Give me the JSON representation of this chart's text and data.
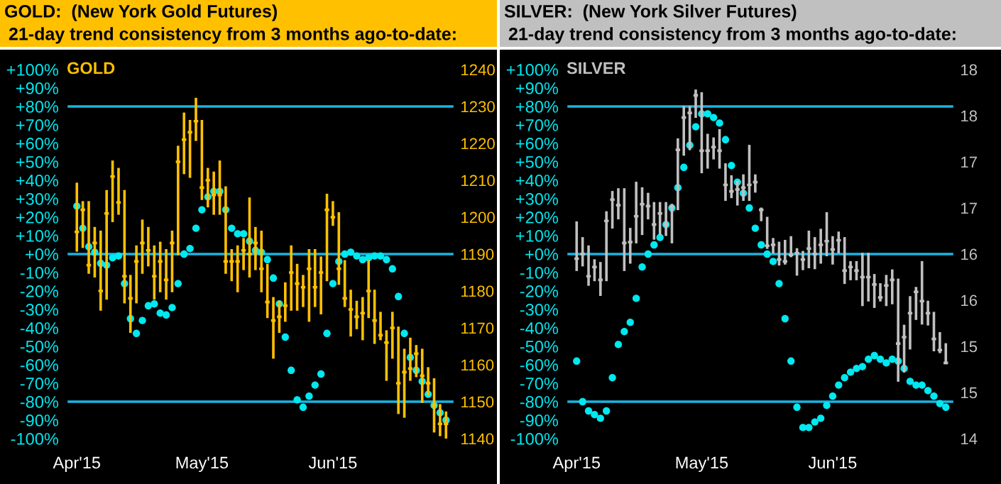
{
  "chart_data": [
    {
      "type": "candlestick",
      "title": "GOLD:  (New York Gold Futures)",
      "subtitle": "21-day trend consistency from 3 months ago-to-date:",
      "categories": [
        "Apr'15",
        null,
        null,
        null,
        null,
        null,
        null,
        null,
        null,
        null,
        null,
        null,
        null,
        null,
        null,
        null,
        null,
        null,
        null,
        null,
        null,
        "May'15",
        null,
        null,
        null,
        null,
        null,
        null,
        null,
        null,
        null,
        null,
        null,
        null,
        null,
        null,
        null,
        null,
        null,
        null,
        null,
        null,
        null,
        "Jun'15",
        null,
        null,
        null,
        null,
        null,
        null,
        null,
        null,
        null,
        null,
        null,
        null,
        null,
        null,
        null,
        null,
        null,
        null,
        null
      ],
      "series": [
        {
          "type": "candlestick",
          "axis": "y2",
          "color": "#ffc000",
          "ohlc": [
            [
              1196,
              1209,
              1191,
              1196
            ],
            [
              1202,
              1204,
              1192,
              1202
            ],
            [
              1187,
              1204,
              1185,
              1187
            ],
            [
              1193,
              1197,
              1184,
              1193
            ],
            [
              1180,
              1196,
              1175,
              1180
            ],
            [
              1201,
              1207,
              1178,
              1201
            ],
            [
              1211,
              1215,
              1199,
              1211
            ],
            [
              1204,
              1213,
              1201,
              1204
            ],
            [
              1184,
              1207,
              1177,
              1184
            ],
            [
              1178,
              1184,
              1169,
              1178
            ],
            [
              1188,
              1192,
              1177,
              1188
            ],
            [
              1193,
              1199,
              1185,
              1193
            ],
            [
              1191,
              1197,
              1187,
              1191
            ],
            [
              1184,
              1192,
              1178,
              1184
            ],
            [
              1188,
              1193,
              1180,
              1188
            ],
            [
              1183,
              1191,
              1178,
              1183
            ],
            [
              1193,
              1196,
              1180,
              1193
            ],
            [
              1215,
              1219,
              1190,
              1215
            ],
            [
              1221,
              1228,
              1212,
              1221
            ],
            [
              1223,
              1226,
              1211,
              1223
            ],
            [
              1226,
              1232,
              1221,
              1226
            ],
            [
              1208,
              1226,
              1205,
              1208
            ],
            [
              1210,
              1213,
              1203,
              1210
            ],
            [
              1206,
              1212,
              1201,
              1206
            ],
            [
              1206,
              1215,
              1201,
              1206
            ],
            [
              1188,
              1208,
              1185,
              1188
            ],
            [
              1188,
              1191,
              1183,
              1188
            ],
            [
              1188,
              1192,
              1180,
              1188
            ],
            [
              1191,
              1194,
              1186,
              1191
            ],
            [
              1190,
              1205,
              1184,
              1190
            ],
            [
              1193,
              1197,
              1186,
              1193
            ],
            [
              1186,
              1196,
              1180,
              1186
            ],
            [
              1177,
              1187,
              1173,
              1177
            ],
            [
              1172,
              1178,
              1162,
              1172
            ],
            [
              1173,
              1177,
              1169,
              1173
            ],
            [
              1176,
              1182,
              1172,
              1176
            ],
            [
              1185,
              1192,
              1175,
              1185
            ],
            [
              1182,
              1187,
              1175,
              1182
            ],
            [
              1181,
              1184,
              1176,
              1181
            ],
            [
              1186,
              1191,
              1172,
              1186
            ],
            [
              1181,
              1191,
              1176,
              1181
            ],
            [
              1185,
              1189,
              1174,
              1185
            ],
            [
              1202,
              1206,
              1183,
              1202
            ],
            [
              1200,
              1204,
              1198,
              1200
            ],
            [
              1186,
              1201,
              1182,
              1186
            ],
            [
              1178,
              1188,
              1176,
              1178
            ],
            [
              1175,
              1180,
              1168,
              1175
            ],
            [
              1173,
              1177,
              1170,
              1173
            ],
            [
              1174,
              1178,
              1167,
              1174
            ],
            [
              1180,
              1188,
              1173,
              1180
            ],
            [
              1172,
              1180,
              1166,
              1172
            ],
            [
              1168,
              1174,
              1167,
              1168
            ],
            [
              1166,
              1169,
              1156,
              1166
            ],
            [
              1170,
              1174,
              1162,
              1170
            ],
            [
              1155,
              1170,
              1147,
              1155
            ],
            [
              1158,
              1164,
              1146,
              1158
            ],
            [
              1159,
              1167,
              1156,
              1159
            ],
            [
              1163,
              1165,
              1157,
              1163
            ],
            [
              1157,
              1164,
              1150,
              1157
            ],
            [
              1155,
              1159,
              1152,
              1155
            ],
            [
              1149,
              1156,
              1142,
              1149
            ],
            [
              1144,
              1149,
              1141,
              1144
            ],
            [
              1144,
              1147,
              1140,
              1144
            ]
          ]
        },
        {
          "type": "scatter",
          "color": "#00e8f0",
          "values": [
            26,
            14,
            4,
            1,
            -5,
            -6,
            -2,
            -1,
            -16,
            -35,
            -43,
            -36,
            -28,
            -27,
            -32,
            -33,
            -29,
            -16,
            0,
            3,
            14,
            24,
            31,
            34,
            34,
            24,
            14,
            11,
            11,
            7,
            2,
            1,
            -3,
            -13,
            -27,
            -45,
            -63,
            -79,
            -83,
            -77,
            -71,
            -65,
            -43,
            -16,
            -4,
            0,
            1,
            -1,
            -3,
            -2,
            -1,
            -1,
            -3,
            -8,
            -23,
            -43,
            -56,
            -63,
            -69,
            -76,
            -82,
            -86,
            -90
          ]
        }
      ],
      "marker": "circle",
      "ylim": [
        -100,
        100
      ],
      "yticks": [
        {
          "value": 100,
          "label": "+100%"
        },
        {
          "value": 90,
          "label": "+90%"
        },
        {
          "value": 80,
          "label": "+80%"
        },
        {
          "value": 70,
          "label": "+70%"
        },
        {
          "value": 60,
          "label": "+60%"
        },
        {
          "value": 50,
          "label": "+50%"
        },
        {
          "value": 40,
          "label": "+40%"
        },
        {
          "value": 30,
          "label": "+30%"
        },
        {
          "value": 20,
          "label": "+20%"
        },
        {
          "value": 10,
          "label": "+10%"
        },
        {
          "value": 0,
          "label": "+0%"
        },
        {
          "value": -10,
          "label": "-10%"
        },
        {
          "value": -20,
          "label": "-20%"
        },
        {
          "value": -30,
          "label": "-30%"
        },
        {
          "value": -40,
          "label": "-40%"
        },
        {
          "value": -50,
          "label": "-50%"
        },
        {
          "value": -60,
          "label": "-60%"
        },
        {
          "value": -70,
          "label": "-70%"
        },
        {
          "value": -80,
          "label": "-80%"
        },
        {
          "value": -90,
          "label": "-90%"
        },
        {
          "value": -100,
          "label": "-100%"
        }
      ],
      "y2lim": [
        1140,
        1240
      ],
      "y2ticks": [
        1140,
        1150,
        1160,
        1170,
        1180,
        1190,
        1200,
        1210,
        1220,
        1230,
        1240
      ],
      "ref_lines": [
        {
          "axis": "y",
          "value": 80,
          "color": "#1ab4e0"
        },
        {
          "axis": "y",
          "value": 0,
          "color": "#1ab4e0"
        },
        {
          "axis": "y",
          "value": -80,
          "color": "#1ab4e0"
        }
      ],
      "annotations": [
        "GOLD"
      ]
    },
    {
      "type": "candlestick",
      "title": "SILVER:  (New York Silver Futures)",
      "subtitle": "21-day trend consistency from 3 months ago-to-date:",
      "categories": [
        "Apr'15",
        null,
        null,
        null,
        null,
        null,
        null,
        null,
        null,
        null,
        null,
        null,
        null,
        null,
        null,
        null,
        null,
        null,
        null,
        null,
        null,
        "May'15",
        null,
        null,
        null,
        null,
        null,
        null,
        null,
        null,
        null,
        null,
        null,
        null,
        null,
        null,
        null,
        null,
        null,
        null,
        null,
        null,
        null,
        "Jun'15",
        null,
        null,
        null,
        null,
        null,
        null,
        null,
        null,
        null,
        null,
        null,
        null,
        null,
        null,
        null,
        null,
        null,
        null,
        null
      ],
      "series": [
        {
          "type": "candlestick",
          "axis": "y2",
          "color": "#c0c0c0",
          "ohlc": [
            [
              15.95,
              16.34,
              15.83,
              15.95
            ],
            [
              16.0,
              16.17,
              15.88,
              16.0
            ],
            [
              15.76,
              16.08,
              15.67,
              15.76
            ],
            [
              15.86,
              15.93,
              15.72,
              15.86
            ],
            [
              15.72,
              15.9,
              15.56,
              15.72
            ],
            [
              16.36,
              16.45,
              15.72,
              16.36
            ],
            [
              16.59,
              16.67,
              16.29,
              16.59
            ],
            [
              16.53,
              16.7,
              16.39,
              16.53
            ],
            [
              16.12,
              16.7,
              15.83,
              16.12
            ],
            [
              16.13,
              16.27,
              15.91,
              16.13
            ],
            [
              16.41,
              16.77,
              16.13,
              16.41
            ],
            [
              16.54,
              16.71,
              16.22,
              16.54
            ],
            [
              16.52,
              16.65,
              16.39,
              16.52
            ],
            [
              16.32,
              16.55,
              16.17,
              16.32
            ],
            [
              16.44,
              16.55,
              16.22,
              16.44
            ],
            [
              16.32,
              16.55,
              16.21,
              16.32
            ],
            [
              16.51,
              16.53,
              16.13,
              16.51
            ],
            [
              17.13,
              17.24,
              16.49,
              17.13
            ],
            [
              17.48,
              17.59,
              17.08,
              17.48
            ],
            [
              17.53,
              17.59,
              17.14,
              17.53
            ],
            [
              17.72,
              17.77,
              17.49,
              17.72
            ],
            [
              17.12,
              17.74,
              16.89,
              17.12
            ],
            [
              17.12,
              17.29,
              16.94,
              17.12
            ],
            [
              17.16,
              17.25,
              17.04,
              17.16
            ],
            [
              17.12,
              17.34,
              16.94,
              17.12
            ],
            [
              16.75,
              16.97,
              16.59,
              16.75
            ],
            [
              16.68,
              16.84,
              16.62,
              16.68
            ],
            [
              16.7,
              16.78,
              16.54,
              16.7
            ],
            [
              16.72,
              16.85,
              16.59,
              16.72
            ],
            [
              16.75,
              17.17,
              16.59,
              16.75
            ],
            [
              16.78,
              16.85,
              16.68,
              16.78
            ],
            [
              16.48,
              16.49,
              16.37,
              16.48
            ],
            [
              16.09,
              16.39,
              16.07,
              16.09
            ],
            [
              16.1,
              16.16,
              16.02,
              16.1
            ],
            [
              15.94,
              16.12,
              15.89,
              15.94
            ],
            [
              15.92,
              16.14,
              15.9,
              15.92
            ],
            [
              15.99,
              16.18,
              15.98,
              15.99
            ],
            [
              16.01,
              16.05,
              15.78,
              16.01
            ],
            [
              15.94,
              16.02,
              15.84,
              15.94
            ],
            [
              16.06,
              16.24,
              15.86,
              16.06
            ],
            [
              16.0,
              16.17,
              15.85,
              16.0
            ],
            [
              16.1,
              16.26,
              15.91,
              16.1
            ],
            [
              16.14,
              16.44,
              15.99,
              16.14
            ],
            [
              16.05,
              16.18,
              15.9,
              16.05
            ],
            [
              16.15,
              16.23,
              16.02,
              16.15
            ],
            [
              15.82,
              16.17,
              15.69,
              15.82
            ],
            [
              15.86,
              15.91,
              15.73,
              15.86
            ],
            [
              15.82,
              15.91,
              15.73,
              15.82
            ],
            [
              15.75,
              16.0,
              15.45,
              15.75
            ],
            [
              15.75,
              16.0,
              15.5,
              15.75
            ],
            [
              15.67,
              15.77,
              15.43,
              15.67
            ],
            [
              15.53,
              15.67,
              15.5,
              15.53
            ],
            [
              15.66,
              15.76,
              15.45,
              15.66
            ],
            [
              15.72,
              15.82,
              15.47,
              15.72
            ],
            [
              15.03,
              15.72,
              14.63,
              15.03
            ],
            [
              15.1,
              15.22,
              14.73,
              15.1
            ],
            [
              15.36,
              15.53,
              14.98,
              15.36
            ],
            [
              15.59,
              15.63,
              15.3,
              15.59
            ],
            [
              15.49,
              15.91,
              15.25,
              15.49
            ],
            [
              15.36,
              15.48,
              15.24,
              15.36
            ],
            [
              15.08,
              15.36,
              14.96,
              15.08
            ],
            [
              14.96,
              15.14,
              14.94,
              14.96
            ],
            [
              14.82,
              15.02,
              14.82,
              14.82
            ]
          ]
        },
        {
          "type": "scatter",
          "color": "#00e8f0",
          "values": [
            -58,
            -80,
            -85,
            -87,
            -89,
            -85,
            -67,
            -49,
            -42,
            -37,
            -24,
            -7,
            0,
            5,
            9,
            16,
            25,
            36,
            47,
            59,
            69,
            76,
            76,
            74,
            71,
            62,
            48,
            39,
            33,
            25,
            14,
            5,
            0,
            -4,
            -16,
            -35,
            -58,
            -83,
            -94,
            -94,
            -91,
            -89,
            -82,
            -77,
            -71,
            -67,
            -64,
            -62,
            -61,
            -57,
            -55,
            -57,
            -59,
            -57,
            -58,
            -62,
            -69,
            -71,
            -71,
            -74,
            -77,
            -81,
            -83
          ]
        }
      ],
      "marker": "circle",
      "ylim": [
        -100,
        100
      ],
      "yticks": [
        {
          "value": 100,
          "label": "+100%"
        },
        {
          "value": 90,
          "label": "+90%"
        },
        {
          "value": 80,
          "label": "+80%"
        },
        {
          "value": 70,
          "label": "+70%"
        },
        {
          "value": 60,
          "label": "+60%"
        },
        {
          "value": 50,
          "label": "+50%"
        },
        {
          "value": 40,
          "label": "+40%"
        },
        {
          "value": 30,
          "label": "+30%"
        },
        {
          "value": 20,
          "label": "+20%"
        },
        {
          "value": 10,
          "label": "+10%"
        },
        {
          "value": 0,
          "label": "+0%"
        },
        {
          "value": -10,
          "label": "-10%"
        },
        {
          "value": -20,
          "label": "-20%"
        },
        {
          "value": -30,
          "label": "-30%"
        },
        {
          "value": -40,
          "label": "-40%"
        },
        {
          "value": -50,
          "label": "-50%"
        },
        {
          "value": -60,
          "label": "-60%"
        },
        {
          "value": -70,
          "label": "-70%"
        },
        {
          "value": -80,
          "label": "-80%"
        },
        {
          "value": -90,
          "label": "-90%"
        },
        {
          "value": -100,
          "label": "-100%"
        }
      ],
      "y2lim": [
        14,
        18
      ],
      "y2ticks": [
        {
          "value": 14,
          "label": "14"
        },
        {
          "value": 14.5,
          "label": "15"
        },
        {
          "value": 15,
          "label": "15"
        },
        {
          "value": 15.5,
          "label": "16"
        },
        {
          "value": 16,
          "label": "16"
        },
        {
          "value": 16.5,
          "label": "17"
        },
        {
          "value": 17,
          "label": "17"
        },
        {
          "value": 17.5,
          "label": "18"
        },
        {
          "value": 18,
          "label": "18"
        }
      ],
      "ref_lines": [
        {
          "axis": "y",
          "value": 80,
          "color": "#1ab4e0"
        },
        {
          "axis": "y",
          "value": 0,
          "color": "#1ab4e0"
        },
        {
          "axis": "y",
          "value": -80,
          "color": "#1ab4e0"
        }
      ],
      "annotations": [
        "SILVER"
      ]
    }
  ]
}
